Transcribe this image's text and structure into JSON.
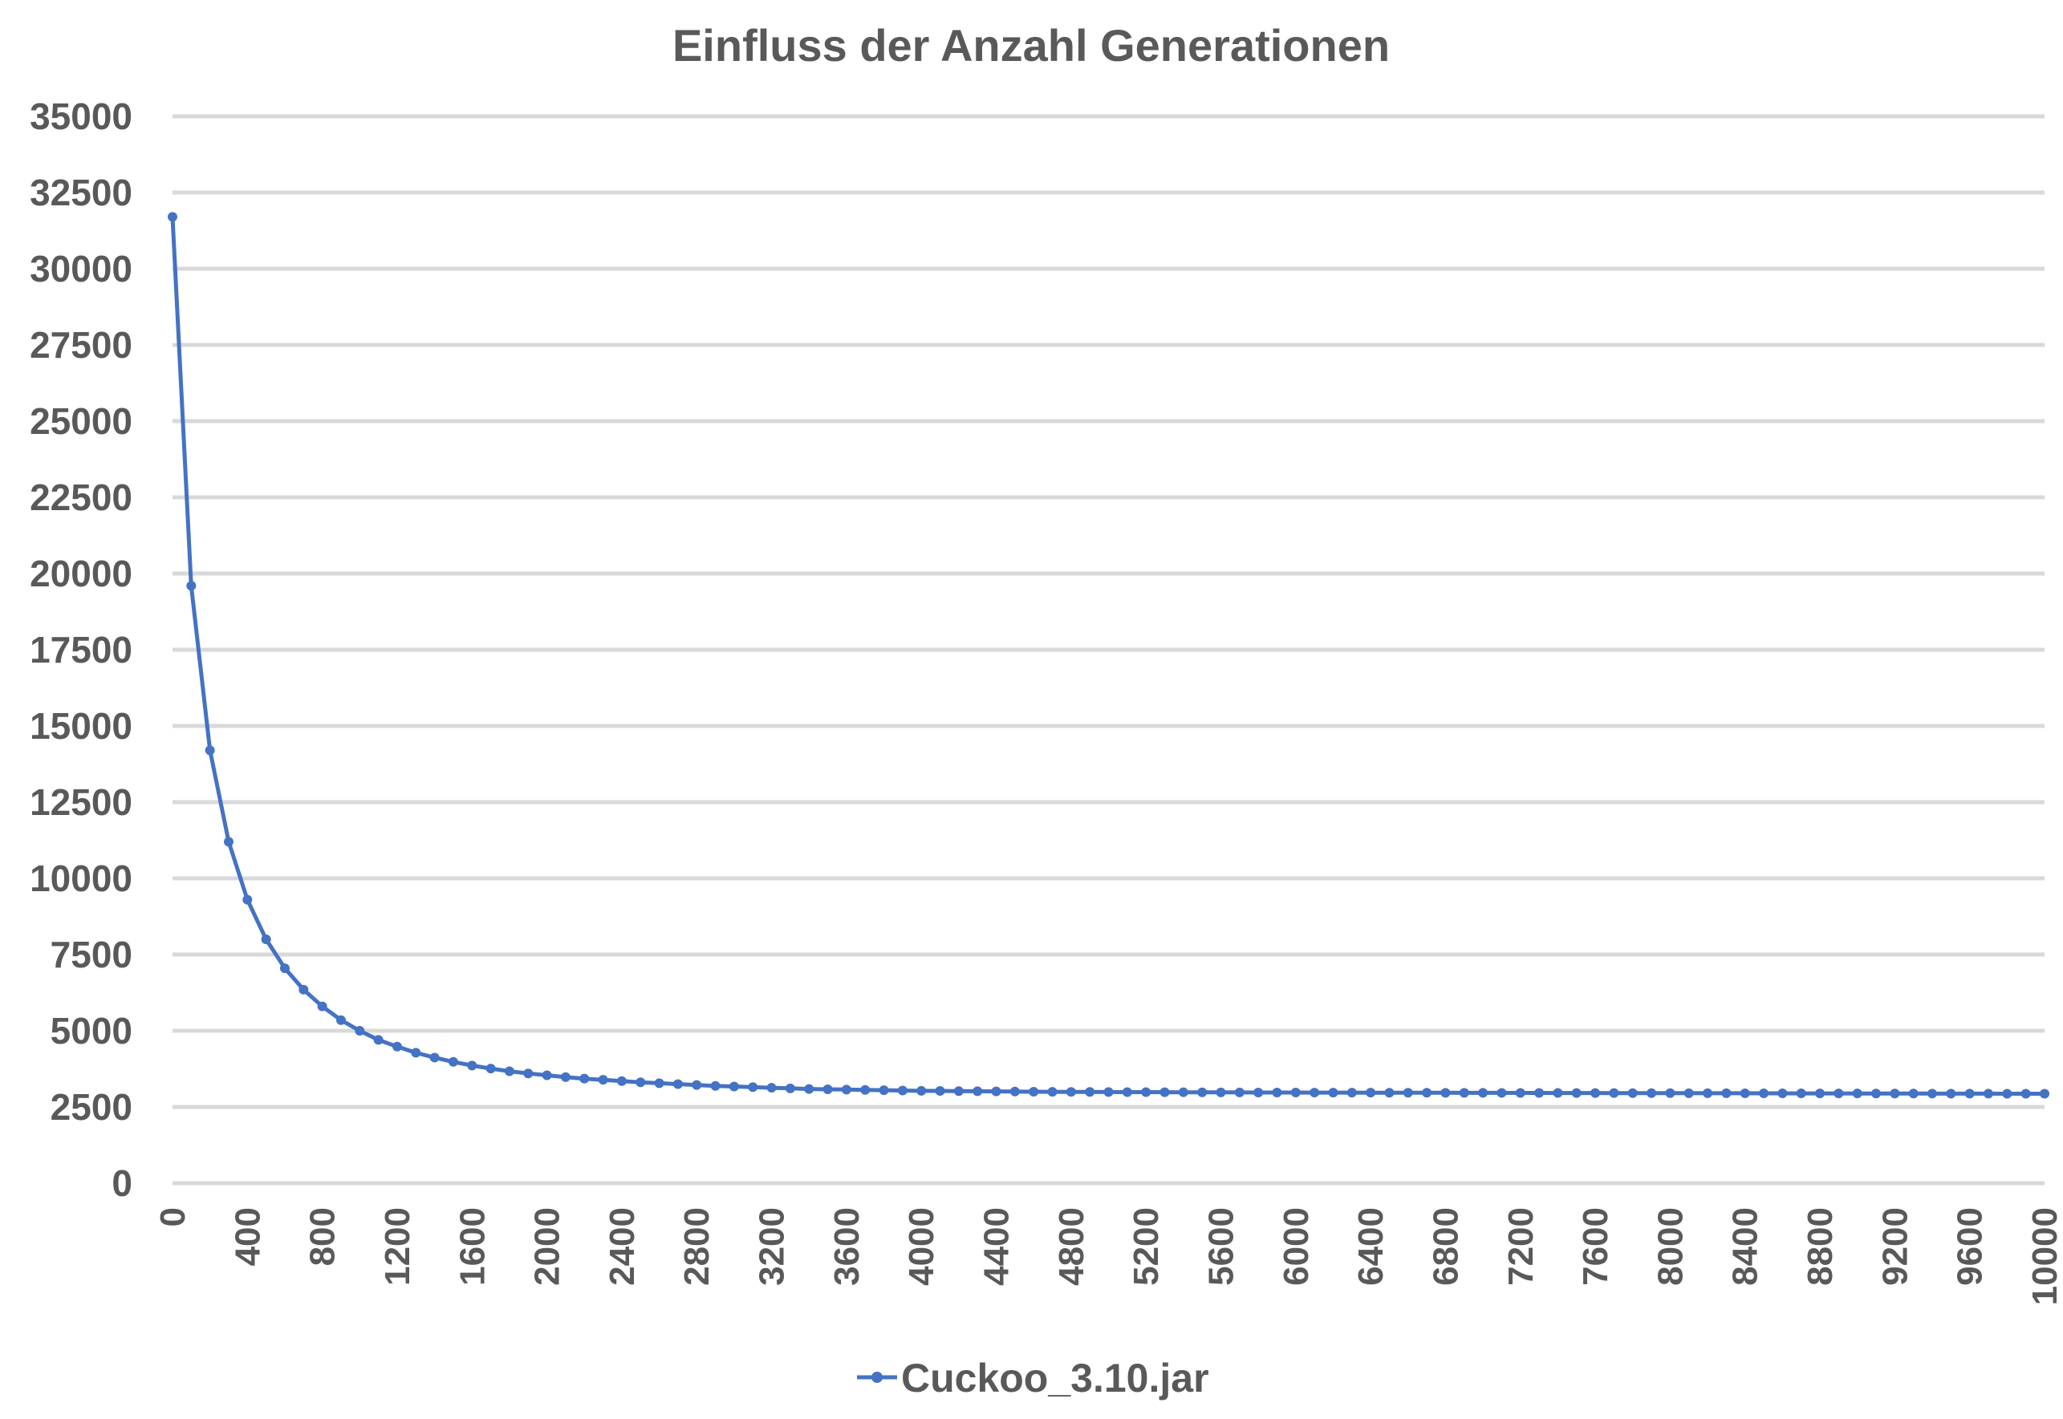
{
  "chart_data": {
    "type": "line",
    "title": "Einfluss der Anzahl Generationen",
    "xlabel": "",
    "ylabel": "",
    "ylim": [
      0,
      35000
    ],
    "xlim": [
      0,
      10000
    ],
    "yticks": [
      "0",
      "2500",
      "5000",
      "7500",
      "10000",
      "12500",
      "15000",
      "17500",
      "20000",
      "22500",
      "25000",
      "27500",
      "30000",
      "32500",
      "35000"
    ],
    "xticks": [
      "0",
      "400",
      "800",
      "1200",
      "1600",
      "2000",
      "2400",
      "2800",
      "3200",
      "3600",
      "4000",
      "4400",
      "4800",
      "5200",
      "5600",
      "6000",
      "6400",
      "6800",
      "7200",
      "7600",
      "8000",
      "8400",
      "8800",
      "9200",
      "9600",
      "10000"
    ],
    "grid": "horizontal",
    "legend_position": "bottom",
    "colors": {
      "series": "#4472c4",
      "grid": "#d9d9d9",
      "text": "#595959"
    },
    "series": [
      {
        "name": "Cuckoo_3.10.jar",
        "x": [
          0,
          100,
          200,
          300,
          400,
          500,
          600,
          700,
          800,
          900,
          1000,
          1100,
          1200,
          1300,
          1400,
          1500,
          1600,
          1700,
          1800,
          1900,
          2000,
          2100,
          2200,
          2300,
          2400,
          2500,
          2600,
          2700,
          2800,
          2900,
          3000,
          3100,
          3200,
          3300,
          3400,
          3500,
          3600,
          3700,
          3800,
          3900,
          4000,
          4100,
          4200,
          4300,
          4400,
          4500,
          4600,
          4700,
          4800,
          4900,
          5000,
          5100,
          5200,
          5300,
          5400,
          5500,
          5600,
          5700,
          5800,
          5900,
          6000,
          6100,
          6200,
          6300,
          6400,
          6500,
          6600,
          6700,
          6800,
          6900,
          7000,
          7100,
          7200,
          7300,
          7400,
          7500,
          7600,
          7700,
          7800,
          7900,
          8000,
          8100,
          8200,
          8300,
          8400,
          8500,
          8600,
          8700,
          8800,
          8900,
          9000,
          9100,
          9200,
          9300,
          9400,
          9500,
          9600,
          9700,
          9800,
          9900,
          10000
        ],
        "values": [
          31700,
          19600,
          14200,
          11200,
          9300,
          8000,
          7050,
          6350,
          5800,
          5350,
          5000,
          4700,
          4480,
          4280,
          4120,
          3980,
          3860,
          3760,
          3670,
          3600,
          3540,
          3480,
          3430,
          3390,
          3350,
          3310,
          3280,
          3250,
          3220,
          3190,
          3170,
          3150,
          3130,
          3110,
          3090,
          3080,
          3070,
          3060,
          3050,
          3040,
          3030,
          3025,
          3020,
          3015,
          3010,
          3005,
          3000,
          2998,
          2995,
          2992,
          2990,
          2988,
          2986,
          2984,
          2982,
          2980,
          2978,
          2976,
          2975,
          2974,
          2973,
          2972,
          2971,
          2970,
          2969,
          2968,
          2967,
          2966,
          2965,
          2964,
          2963,
          2962,
          2961,
          2960,
          2959,
          2958,
          2957,
          2956,
          2955,
          2954,
          2953,
          2952,
          2951,
          2950,
          2949,
          2948,
          2947,
          2946,
          2945,
          2944,
          2943,
          2942,
          2941,
          2940,
          2939,
          2938,
          2937,
          2936,
          2935,
          2934,
          2933
        ]
      }
    ]
  }
}
